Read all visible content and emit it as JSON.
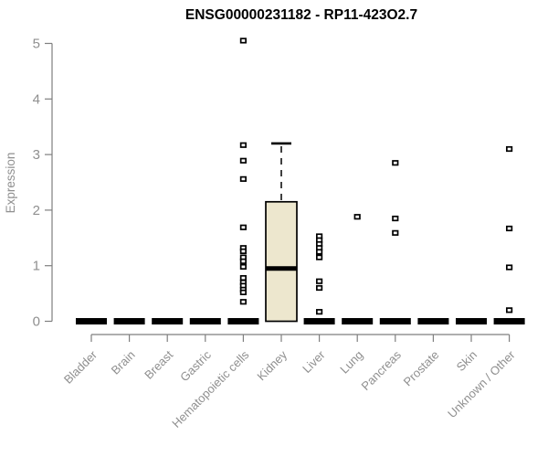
{
  "chart_data": {
    "type": "boxplot",
    "title": "ENSG00000231182 - RP11-423O2.7",
    "xlabel": "",
    "ylabel": "Expression",
    "ylim": [
      0,
      5
    ],
    "yticks": [
      0,
      1,
      2,
      3,
      4,
      5
    ],
    "grid": false,
    "legend": "none",
    "categories": [
      "Bladder",
      "Brain",
      "Breast",
      "Gastric",
      "Hematopoietic cells",
      "Kidney",
      "Liver",
      "Lung",
      "Pancreas",
      "Prostate",
      "Skin",
      "Unknown / Other"
    ],
    "boxes": [
      {
        "category": "Bladder",
        "q1": 0,
        "median": 0,
        "q3": 0,
        "whisker_low": 0,
        "whisker_high": 0,
        "outliers": []
      },
      {
        "category": "Brain",
        "q1": 0,
        "median": 0,
        "q3": 0,
        "whisker_low": 0,
        "whisker_high": 0,
        "outliers": []
      },
      {
        "category": "Breast",
        "q1": 0,
        "median": 0,
        "q3": 0,
        "whisker_low": 0,
        "whisker_high": 0,
        "outliers": []
      },
      {
        "category": "Gastric",
        "q1": 0,
        "median": 0,
        "q3": 0,
        "whisker_low": 0,
        "whisker_high": 0,
        "outliers": []
      },
      {
        "category": "Hematopoietic cells",
        "q1": 0,
        "median": 0,
        "q3": 0,
        "whisker_low": 0,
        "whisker_high": 0,
        "outliers": [
          5.05,
          3.17,
          2.89,
          2.56,
          1.69,
          1.32,
          1.26,
          1.15,
          1.08,
          0.98,
          0.78,
          0.7,
          0.64,
          0.57,
          0.52,
          0.35
        ]
      },
      {
        "category": "Kidney",
        "q1": 0,
        "median": 0.95,
        "q3": 2.15,
        "whisker_low": 0,
        "whisker_high": 3.2,
        "outliers": []
      },
      {
        "category": "Liver",
        "q1": 0,
        "median": 0,
        "q3": 0,
        "whisker_low": 0,
        "whisker_high": 0,
        "outliers": [
          1.53,
          1.46,
          1.39,
          1.32,
          1.25,
          1.15,
          0.72,
          0.6,
          0.17
        ]
      },
      {
        "category": "Lung",
        "q1": 0,
        "median": 0,
        "q3": 0,
        "whisker_low": 0,
        "whisker_high": 0,
        "outliers": [
          1.88
        ]
      },
      {
        "category": "Pancreas",
        "q1": 0,
        "median": 0,
        "q3": 0,
        "whisker_low": 0,
        "whisker_high": 0,
        "outliers": [
          2.85,
          1.85,
          1.59
        ]
      },
      {
        "category": "Prostate",
        "q1": 0,
        "median": 0,
        "q3": 0,
        "whisker_low": 0,
        "whisker_high": 0,
        "outliers": []
      },
      {
        "category": "Skin",
        "q1": 0,
        "median": 0,
        "q3": 0,
        "whisker_low": 0,
        "whisker_high": 0,
        "outliers": []
      },
      {
        "category": "Unknown / Other",
        "q1": 0,
        "median": 0,
        "q3": 0,
        "whisker_low": 0,
        "whisker_high": 0,
        "outliers": [
          3.1,
          1.67,
          0.97,
          0.2
        ]
      }
    ],
    "colors": {
      "box_fill": "#EDE7CE",
      "box_stroke": "#000000",
      "median": "#000000",
      "outlier_fill": "#ffffff",
      "axis": "#7f7f7f",
      "tick_label": "#8f8f8f",
      "title": "#000000"
    }
  }
}
